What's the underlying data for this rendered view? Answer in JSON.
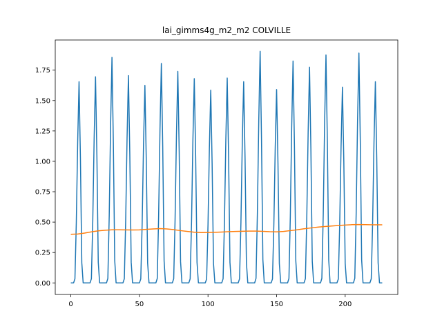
{
  "chart_data": {
    "type": "line",
    "title": "lai_gimms4g_m2_m2 COLVILLE",
    "xlabel": "",
    "ylabel": "",
    "xlim": [
      -11.35,
      238.35
    ],
    "ylim": [
      -0.095,
      1.998
    ],
    "xticks": [
      0,
      50,
      100,
      150,
      200
    ],
    "yticks": [
      0.0,
      0.25,
      0.5,
      0.75,
      1.0,
      1.25,
      1.5,
      1.75
    ],
    "ytick_labels": [
      "0.00",
      "0.25",
      "0.50",
      "0.75",
      "1.00",
      "1.25",
      "1.50",
      "1.75"
    ],
    "grid": false,
    "series": [
      {
        "color": "#1f77b4",
        "peaks": [
          {
            "x": 6,
            "y": 1.655
          },
          {
            "x": 18,
            "y": 1.695
          },
          {
            "x": 30,
            "y": 1.855
          },
          {
            "x": 42,
            "y": 1.705
          },
          {
            "x": 54,
            "y": 1.625
          },
          {
            "x": 66,
            "y": 1.805
          },
          {
            "x": 78,
            "y": 1.74
          },
          {
            "x": 90,
            "y": 1.68
          },
          {
            "x": 102,
            "y": 1.585
          },
          {
            "x": 114,
            "y": 1.685
          },
          {
            "x": 126,
            "y": 1.655
          },
          {
            "x": 138,
            "y": 1.905
          },
          {
            "x": 150,
            "y": 1.59
          },
          {
            "x": 162,
            "y": 1.825
          },
          {
            "x": 174,
            "y": 1.775
          },
          {
            "x": 186,
            "y": 1.875
          },
          {
            "x": 198,
            "y": 1.61
          },
          {
            "x": 210,
            "y": 1.89
          },
          {
            "x": 222,
            "y": 1.655
          }
        ],
        "x_end": 227
      },
      {
        "color": "#ff7f0e",
        "x": [
          0,
          5,
          10,
          15,
          20,
          25,
          30,
          35,
          40,
          45,
          50,
          55,
          60,
          65,
          70,
          75,
          80,
          85,
          90,
          95,
          100,
          105,
          110,
          115,
          120,
          125,
          130,
          135,
          140,
          145,
          150,
          155,
          160,
          165,
          170,
          175,
          180,
          185,
          190,
          195,
          200,
          205,
          210,
          215,
          220,
          227
        ],
        "values": [
          0.4,
          0.402,
          0.41,
          0.42,
          0.428,
          0.433,
          0.437,
          0.437,
          0.436,
          0.435,
          0.436,
          0.44,
          0.444,
          0.447,
          0.444,
          0.438,
          0.43,
          0.423,
          0.417,
          0.414,
          0.415,
          0.416,
          0.418,
          0.421,
          0.423,
          0.425,
          0.426,
          0.426,
          0.424,
          0.421,
          0.42,
          0.423,
          0.43,
          0.437,
          0.445,
          0.452,
          0.459,
          0.464,
          0.468,
          0.472,
          0.476,
          0.479,
          0.48,
          0.479,
          0.478,
          0.478
        ]
      }
    ]
  }
}
